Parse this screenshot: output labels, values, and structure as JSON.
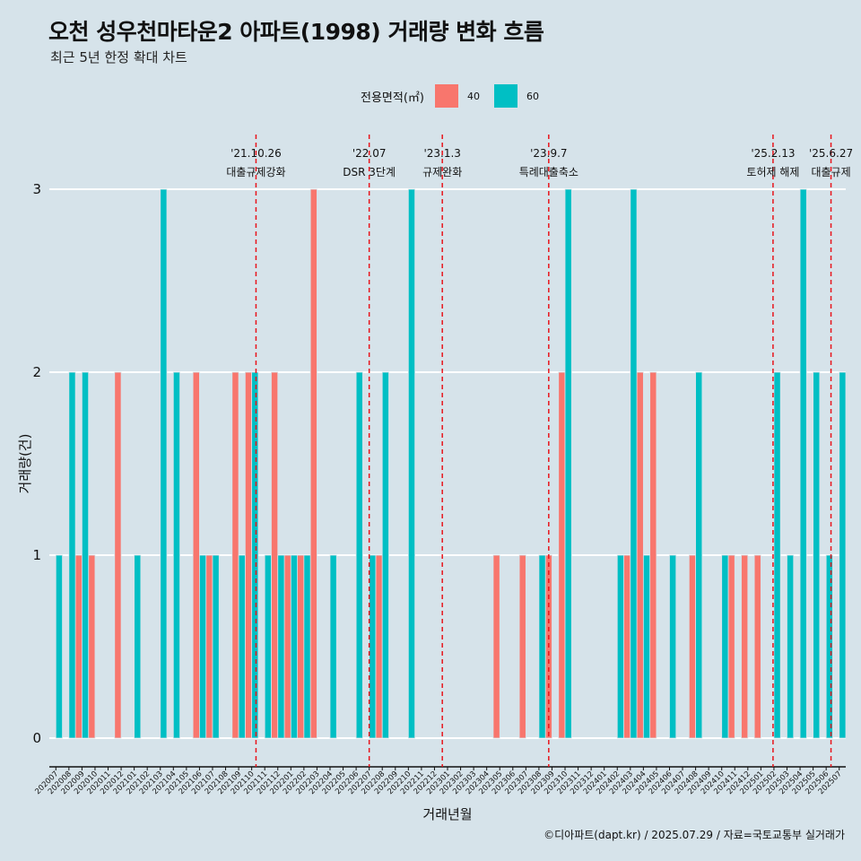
{
  "header": {
    "title": "오천 성우천마타운2 아파트(1998) 거래량 변화 흐름",
    "subtitle": "최근 5년 한정 확대 차트"
  },
  "legend": {
    "title": "전용면적(㎡)",
    "items": [
      {
        "label": "40",
        "color": "#f8766d"
      },
      {
        "label": "60",
        "color": "#00bfc4"
      }
    ]
  },
  "caption": "©디아파트(dapt.kr) / 2025.07.29 / 자료=국토교통부 실거래가",
  "chart_data": {
    "type": "bar",
    "title": "오천 성우천마타운2 아파트(1998) 거래량 변화 흐름",
    "xlabel": "거래년월",
    "ylabel": "거래량(건)",
    "ylim": [
      0,
      3
    ],
    "yticks": [
      0,
      1,
      2,
      3
    ],
    "categories": [
      "202007",
      "202008",
      "202009",
      "202010",
      "202011",
      "202012",
      "202101",
      "202102",
      "202103",
      "202104",
      "202105",
      "202106",
      "202107",
      "202108",
      "202109",
      "202110",
      "202111",
      "202112",
      "202201",
      "202202",
      "202203",
      "202204",
      "202205",
      "202206",
      "202207",
      "202208",
      "202209",
      "202210",
      "202211",
      "202212",
      "202301",
      "202302",
      "202303",
      "202304",
      "202305",
      "202306",
      "202307",
      "202308",
      "202309",
      "202310",
      "202311",
      "202312",
      "202401",
      "202402",
      "202403",
      "202404",
      "202405",
      "202406",
      "202407",
      "202408",
      "202409",
      "202410",
      "202411",
      "202412",
      "202501",
      "202502",
      "202503",
      "202504",
      "202505",
      "202506",
      "202507"
    ],
    "series": [
      {
        "name": "40",
        "color": "#f8766d",
        "values": [
          0,
          0,
          1,
          1,
          0,
          2,
          0,
          0,
          0,
          0,
          0,
          2,
          1,
          0,
          2,
          2,
          0,
          2,
          1,
          1,
          3,
          0,
          0,
          0,
          0,
          1,
          0,
          0,
          0,
          0,
          0,
          0,
          0,
          0,
          1,
          0,
          1,
          0,
          1,
          2,
          0,
          0,
          0,
          0,
          1,
          2,
          2,
          0,
          0,
          1,
          0,
          0,
          1,
          1,
          1,
          0,
          0,
          0,
          0,
          0,
          0
        ]
      },
      {
        "name": "60",
        "color": "#00bfc4",
        "values": [
          1,
          2,
          2,
          0,
          0,
          0,
          1,
          0,
          3,
          2,
          0,
          1,
          1,
          0,
          1,
          2,
          1,
          1,
          1,
          1,
          0,
          1,
          0,
          2,
          1,
          2,
          0,
          3,
          0,
          0,
          0,
          0,
          0,
          0,
          0,
          0,
          0,
          1,
          0,
          3,
          0,
          0,
          0,
          1,
          3,
          1,
          0,
          1,
          0,
          2,
          0,
          1,
          0,
          0,
          0,
          2,
          1,
          3,
          2,
          1,
          2
        ]
      }
    ],
    "annotations": [
      {
        "date": "'21.10.26",
        "label": "대출규제강화",
        "after": "202110",
        "frac": 0.83
      },
      {
        "date": "'22.07",
        "label": "DSR 3단계",
        "after": "202207",
        "frac": 0.5
      },
      {
        "date": "'23.1.3",
        "label": "규제완화",
        "after": "202301",
        "frac": 0.1
      },
      {
        "date": "'23.9.7",
        "label": "특례대출축소",
        "after": "202309",
        "frac": 0.25
      },
      {
        "date": "'25.2.13",
        "label": "토허제 해제",
        "after": "202502",
        "frac": 0.43
      },
      {
        "date": "'25.6.27",
        "label": "대출규제",
        "after": "202506",
        "frac": 0.87
      }
    ]
  }
}
